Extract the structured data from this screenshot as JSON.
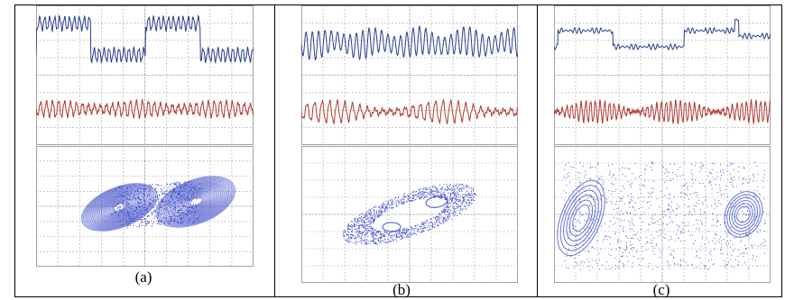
{
  "colors": {
    "frame": "#000000",
    "grid": "#8c8c8c",
    "waveform_top": "#2a3f8f",
    "waveform_bottom": "#b23a32",
    "attractor": "#3a48c8",
    "screen_bg": "#ffffff"
  },
  "panels": [
    {
      "label": "(a)",
      "bottom_kind": "dense-double-scroll"
    },
    {
      "label": "(b)",
      "bottom_kind": "tilted-loop"
    },
    {
      "label": "(c)",
      "bottom_kind": "scattered-double-scroll"
    }
  ]
}
